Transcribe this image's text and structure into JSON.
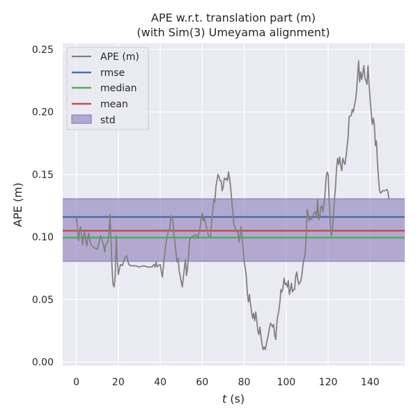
{
  "chart_data": {
    "type": "line",
    "title_line1": "APE w.r.t. translation part (m)",
    "title_line2": "(with Sim(3) Umeyama alignment)",
    "xlabel_var": "t",
    "xlabel_unit": " (s)",
    "ylabel": "APE (m)",
    "xlim": [
      -6.5,
      156.5
    ],
    "ylim": [
      -0.003,
      0.255
    ],
    "x_ticks": [
      0,
      20,
      40,
      60,
      80,
      100,
      120,
      140
    ],
    "x_tick_labels": [
      "0",
      "20",
      "40",
      "60",
      "80",
      "100",
      "120",
      "140"
    ],
    "y_ticks": [
      0.0,
      0.05,
      0.1,
      0.15,
      0.2,
      0.25
    ],
    "y_tick_labels": [
      "0.00",
      "0.05",
      "0.10",
      "0.15",
      "0.20",
      "0.25"
    ],
    "grid": true,
    "legend_position": "upper-left",
    "legend": [
      {
        "label": "APE (m)",
        "kind": "line",
        "color": "#808080"
      },
      {
        "label": "rmse",
        "kind": "line",
        "color": "#4c72b0"
      },
      {
        "label": "median",
        "kind": "line",
        "color": "#55a868"
      },
      {
        "label": "mean",
        "kind": "line",
        "color": "#c44e52"
      },
      {
        "label": "std",
        "kind": "patch",
        "color": "#8172b2"
      }
    ],
    "stats": {
      "rmse": 0.116,
      "median": 0.0995,
      "mean": 0.105,
      "std_low": 0.0805,
      "std_high": 0.1305
    },
    "series": [
      {
        "name": "APE (m)",
        "color": "#808080",
        "points": [
          [
            0,
            0.116
          ],
          [
            0.5,
            0.108
          ],
          [
            1,
            0.097
          ],
          [
            1.5,
            0.104
          ],
          [
            2,
            0.108
          ],
          [
            2.5,
            0.102
          ],
          [
            3,
            0.094
          ],
          [
            3.5,
            0.101
          ],
          [
            4,
            0.104
          ],
          [
            4.5,
            0.097
          ],
          [
            5,
            0.093
          ],
          [
            5.5,
            0.1
          ],
          [
            6,
            0.103
          ],
          [
            6.5,
            0.096
          ],
          [
            7,
            0.094
          ],
          [
            8,
            0.092
          ],
          [
            9,
            0.091
          ],
          [
            10,
            0.09
          ],
          [
            11,
            0.097
          ],
          [
            11.5,
            0.101
          ],
          [
            12,
            0.099
          ],
          [
            13,
            0.093
          ],
          [
            13.5,
            0.088
          ],
          [
            14,
            0.094
          ],
          [
            15,
            0.096
          ],
          [
            15.5,
            0.102
          ],
          [
            16,
            0.118
          ],
          [
            16.5,
            0.1
          ],
          [
            17,
            0.075
          ],
          [
            17.5,
            0.062
          ],
          [
            18,
            0.06
          ],
          [
            18.5,
            0.068
          ],
          [
            19,
            0.101
          ],
          [
            19.5,
            0.082
          ],
          [
            20,
            0.07
          ],
          [
            21,
            0.078
          ],
          [
            22,
            0.077
          ],
          [
            23,
            0.083
          ],
          [
            24,
            0.085
          ],
          [
            25,
            0.078
          ],
          [
            26,
            0.077
          ],
          [
            28,
            0.077
          ],
          [
            30,
            0.076
          ],
          [
            32,
            0.077
          ],
          [
            34,
            0.076
          ],
          [
            36,
            0.076
          ],
          [
            37,
            0.078
          ],
          [
            37.5,
            0.076
          ],
          [
            38,
            0.08
          ],
          [
            38.5,
            0.076
          ],
          [
            39,
            0.077
          ],
          [
            40,
            0.078
          ],
          [
            40.5,
            0.072
          ],
          [
            41,
            0.068
          ],
          [
            42,
            0.085
          ],
          [
            43,
            0.098
          ],
          [
            44,
            0.106
          ],
          [
            44.5,
            0.105
          ],
          [
            45,
            0.117
          ],
          [
            45.5,
            0.116
          ],
          [
            46,
            0.113
          ],
          [
            46.5,
            0.102
          ],
          [
            47,
            0.095
          ],
          [
            48,
            0.08
          ],
          [
            48.5,
            0.083
          ],
          [
            49,
            0.073
          ],
          [
            50,
            0.064
          ],
          [
            50.5,
            0.06
          ],
          [
            51,
            0.068
          ],
          [
            51.5,
            0.075
          ],
          [
            52,
            0.082
          ],
          [
            52.5,
            0.069
          ],
          [
            53,
            0.075
          ],
          [
            53.5,
            0.085
          ],
          [
            54,
            0.098
          ],
          [
            55,
            0.1
          ],
          [
            56,
            0.101
          ],
          [
            57,
            0.102
          ],
          [
            57.5,
            0.1
          ],
          [
            58,
            0.1
          ],
          [
            59,
            0.108
          ],
          [
            59.5,
            0.114
          ],
          [
            60,
            0.119
          ],
          [
            60.5,
            0.113
          ],
          [
            61,
            0.115
          ],
          [
            62,
            0.108
          ],
          [
            63,
            0.101
          ],
          [
            64,
            0.1
          ],
          [
            64.5,
            0.115
          ],
          [
            65,
            0.12
          ],
          [
            65.5,
            0.13
          ],
          [
            66,
            0.128
          ],
          [
            66.5,
            0.14
          ],
          [
            67,
            0.145
          ],
          [
            67.5,
            0.15
          ],
          [
            68,
            0.148
          ],
          [
            68.5,
            0.145
          ],
          [
            69,
            0.145
          ],
          [
            69.5,
            0.137
          ],
          [
            70,
            0.14
          ],
          [
            70.5,
            0.147
          ],
          [
            71,
            0.146
          ],
          [
            71.5,
            0.147
          ],
          [
            72,
            0.145
          ],
          [
            72.5,
            0.152
          ],
          [
            73,
            0.147
          ],
          [
            73.5,
            0.14
          ],
          [
            74,
            0.13
          ],
          [
            74.5,
            0.121
          ],
          [
            75,
            0.111
          ],
          [
            75.5,
            0.108
          ],
          [
            76,
            0.106
          ],
          [
            76.5,
            0.104
          ],
          [
            77,
            0.104
          ],
          [
            77.5,
            0.096
          ],
          [
            78,
            0.101
          ],
          [
            78.5,
            0.108
          ],
          [
            79,
            0.1
          ],
          [
            79.5,
            0.09
          ],
          [
            80,
            0.08
          ],
          [
            80.5,
            0.075
          ],
          [
            81,
            0.068
          ],
          [
            81.5,
            0.055
          ],
          [
            82,
            0.048
          ],
          [
            82.5,
            0.054
          ],
          [
            83,
            0.046
          ],
          [
            83.5,
            0.04
          ],
          [
            84,
            0.035
          ],
          [
            84.5,
            0.039
          ],
          [
            85,
            0.033
          ],
          [
            85.5,
            0.04
          ],
          [
            86,
            0.033
          ],
          [
            86.5,
            0.025
          ],
          [
            87,
            0.022
          ],
          [
            87.5,
            0.028
          ],
          [
            88,
            0.02
          ],
          [
            88.5,
            0.014
          ],
          [
            89,
            0.01
          ],
          [
            89.5,
            0.012
          ],
          [
            90,
            0.01
          ],
          [
            90.5,
            0.014
          ],
          [
            91,
            0.018
          ],
          [
            91.5,
            0.022
          ],
          [
            92,
            0.027
          ],
          [
            92.5,
            0.031
          ],
          [
            93,
            0.03
          ],
          [
            93.5,
            0.028
          ],
          [
            94,
            0.03
          ],
          [
            94.5,
            0.022
          ],
          [
            95,
            0.018
          ],
          [
            95.5,
            0.03
          ],
          [
            96,
            0.037
          ],
          [
            96.5,
            0.041
          ],
          [
            97,
            0.048
          ],
          [
            97.5,
            0.058
          ],
          [
            98,
            0.056
          ],
          [
            98.5,
            0.06
          ],
          [
            99,
            0.067
          ],
          [
            99.5,
            0.062
          ],
          [
            100,
            0.063
          ],
          [
            100.5,
            0.06
          ],
          [
            101,
            0.065
          ],
          [
            101.5,
            0.054
          ],
          [
            102,
            0.058
          ],
          [
            102.5,
            0.063
          ],
          [
            103,
            0.056
          ],
          [
            103.5,
            0.058
          ],
          [
            104,
            0.058
          ],
          [
            104.5,
            0.068
          ],
          [
            105,
            0.072
          ],
          [
            105.5,
            0.066
          ],
          [
            106,
            0.062
          ],
          [
            107,
            0.065
          ],
          [
            107.5,
            0.07
          ],
          [
            108,
            0.078
          ],
          [
            108.5,
            0.083
          ],
          [
            109,
            0.085
          ],
          [
            109.5,
            0.1
          ],
          [
            110,
            0.122
          ],
          [
            110.5,
            0.118
          ],
          [
            111,
            0.113
          ],
          [
            111.5,
            0.116
          ],
          [
            112,
            0.114
          ],
          [
            112.5,
            0.116
          ],
          [
            113,
            0.118
          ],
          [
            113.5,
            0.12
          ],
          [
            114,
            0.12
          ],
          [
            114.5,
            0.116
          ],
          [
            115,
            0.13
          ],
          [
            115.5,
            0.114
          ],
          [
            116,
            0.116
          ],
          [
            116.5,
            0.124
          ],
          [
            117,
            0.125
          ],
          [
            117.5,
            0.12
          ],
          [
            118,
            0.126
          ],
          [
            118.5,
            0.134
          ],
          [
            119,
            0.148
          ],
          [
            119.5,
            0.152
          ],
          [
            120,
            0.15
          ],
          [
            120.5,
            0.128
          ],
          [
            121,
            0.112
          ],
          [
            121.5,
            0.101
          ],
          [
            122,
            0.105
          ],
          [
            122.5,
            0.117
          ],
          [
            123,
            0.13
          ],
          [
            123.5,
            0.14
          ],
          [
            124,
            0.155
          ],
          [
            124.5,
            0.163
          ],
          [
            125,
            0.158
          ],
          [
            125.5,
            0.164
          ],
          [
            126,
            0.157
          ],
          [
            126.5,
            0.153
          ],
          [
            127,
            0.163
          ],
          [
            127.5,
            0.16
          ],
          [
            128,
            0.158
          ],
          [
            128.5,
            0.164
          ],
          [
            129,
            0.172
          ],
          [
            129.5,
            0.18
          ],
          [
            130,
            0.196
          ],
          [
            130.5,
            0.197
          ],
          [
            131,
            0.197
          ],
          [
            131.5,
            0.202
          ],
          [
            132,
            0.2
          ],
          [
            132.5,
            0.205
          ],
          [
            133,
            0.209
          ],
          [
            133.5,
            0.216
          ],
          [
            134,
            0.228
          ],
          [
            134.5,
            0.241
          ],
          [
            135,
            0.224
          ],
          [
            135.5,
            0.232
          ],
          [
            136,
            0.226
          ],
          [
            136.5,
            0.231
          ],
          [
            137,
            0.237
          ],
          [
            137.5,
            0.227
          ],
          [
            138,
            0.225
          ],
          [
            138.5,
            0.222
          ],
          [
            139,
            0.237
          ],
          [
            139.5,
            0.223
          ],
          [
            140,
            0.21
          ],
          [
            140.5,
            0.2
          ],
          [
            141,
            0.19
          ],
          [
            141.5,
            0.195
          ],
          [
            142,
            0.19
          ],
          [
            142.5,
            0.173
          ],
          [
            143,
            0.177
          ],
          [
            143.5,
            0.16
          ],
          [
            144,
            0.147
          ],
          [
            144.5,
            0.137
          ],
          [
            145,
            0.135
          ],
          [
            146,
            0.137
          ],
          [
            147,
            0.137
          ],
          [
            148,
            0.138
          ],
          [
            148.5,
            0.136
          ],
          [
            149,
            0.13
          ]
        ]
      }
    ]
  }
}
